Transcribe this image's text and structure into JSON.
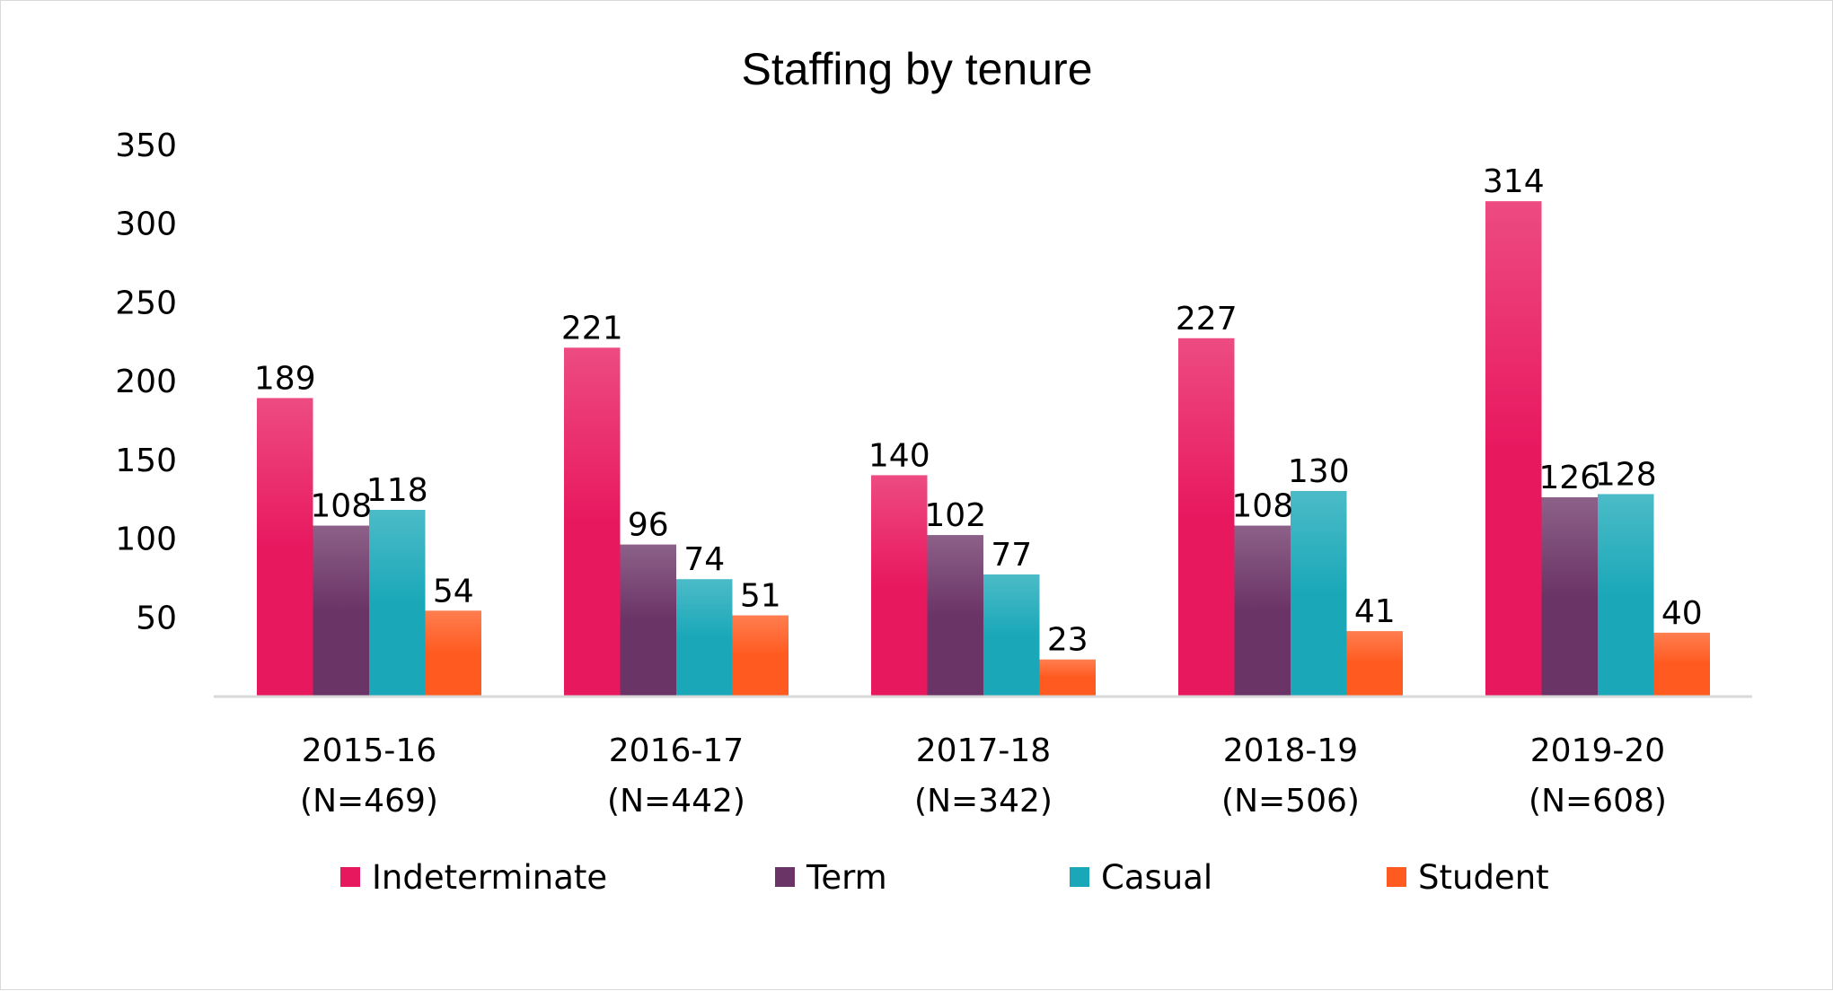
{
  "chart_data": {
    "type": "bar",
    "title": "Staffing by tenure",
    "categories": [
      "2015-16",
      "2016-17",
      "2017-18",
      "2018-19",
      "2019-20"
    ],
    "category_sublabels": [
      "(N=469)",
      "(N=442)",
      "(N=342)",
      "(N=506)",
      "(N=608)"
    ],
    "series": [
      {
        "name": "Indeterminate",
        "color": "#e8185f",
        "values": [
          189,
          221,
          140,
          227,
          314
        ]
      },
      {
        "name": "Term",
        "color": "#6b3466",
        "values": [
          108,
          96,
          102,
          108,
          126
        ]
      },
      {
        "name": "Casual",
        "color": "#1aa8b8",
        "values": [
          118,
          74,
          77,
          130,
          128
        ]
      },
      {
        "name": "Student",
        "color": "#ff5a1f",
        "values": [
          54,
          51,
          23,
          41,
          40
        ]
      }
    ],
    "yticks": [
      50,
      100,
      150,
      200,
      250,
      300,
      350
    ],
    "ylim": [
      0,
      350
    ],
    "xlabel": "",
    "ylabel": "",
    "grid": false,
    "data_labels": true,
    "legend_position": "bottom"
  }
}
